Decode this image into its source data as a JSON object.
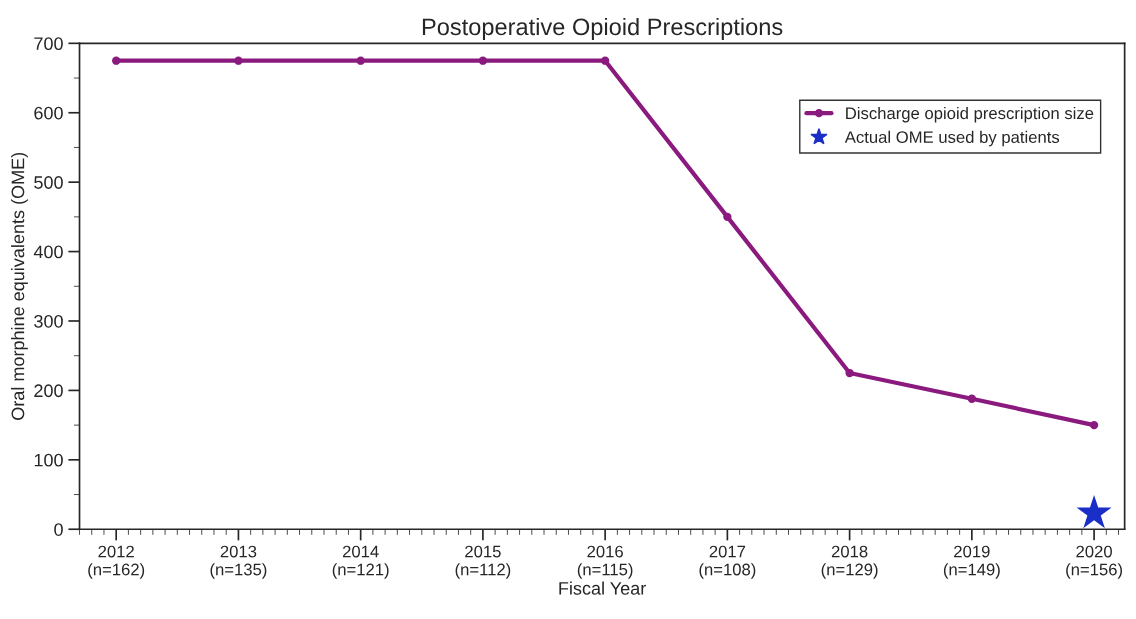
{
  "chart_data": {
    "type": "line",
    "title": "Postoperative Opioid Prescriptions",
    "xlabel": "Fiscal Year",
    "ylabel": "Oral morphine equivalents (OME)",
    "categories": [
      "2012\n(n=162)",
      "2013\n(n=135)",
      "2014\n(n=121)",
      "2015\n(n=112)",
      "2016\n(n=115)",
      "2017\n(n=108)",
      "2018\n(n=129)",
      "2019\n(n=149)",
      "2020\n(n=156)"
    ],
    "series": [
      {
        "name": "Discharge opioid prescription size",
        "color": "#8b1a7f",
        "marker": "circle",
        "values": [
          675,
          675,
          675,
          675,
          675,
          450,
          225,
          188,
          150
        ]
      },
      {
        "name": "Actual OME used by patients",
        "type": "scatter",
        "color": "#1a2fc8",
        "marker": "star",
        "x": [
          "2020\n(n=156)"
        ],
        "values": [
          23
        ]
      }
    ],
    "ylim": [
      0,
      700
    ],
    "yticks": [
      0,
      100,
      200,
      300,
      400,
      500,
      600,
      700
    ],
    "grid": false,
    "legend": "top right"
  }
}
